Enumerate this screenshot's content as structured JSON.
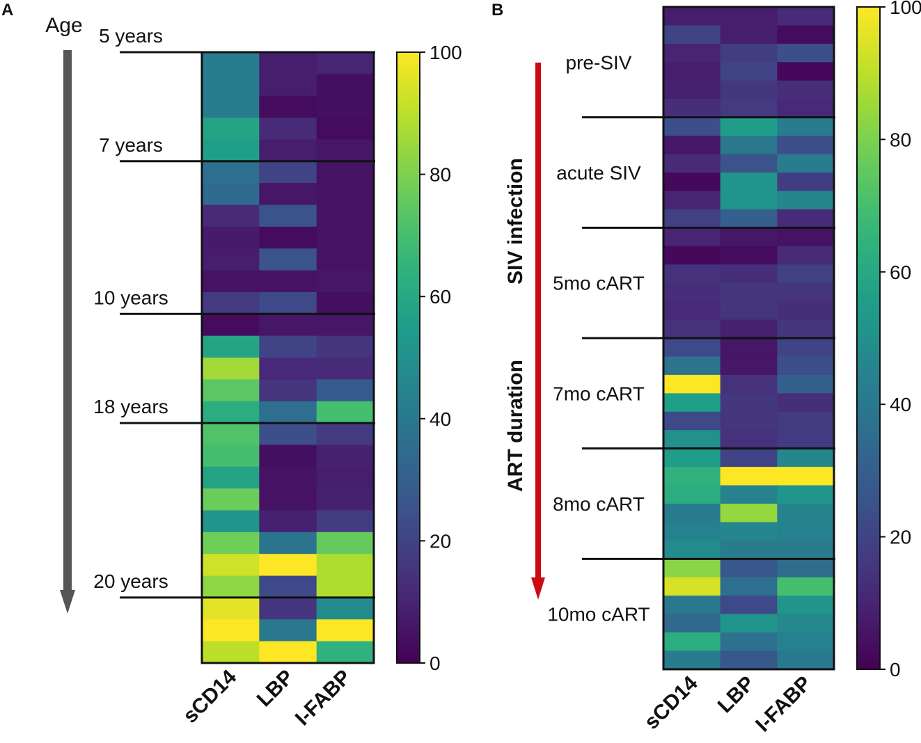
{
  "chart_data": [
    {
      "panel_label": "A",
      "type": "heatmap",
      "axis_title": "Age",
      "columns": [
        "sCD14",
        "LBP",
        "I-FABP"
      ],
      "groups": [
        {
          "label": "5 years",
          "rows": 5
        },
        {
          "label": "7 years",
          "rows": 7
        },
        {
          "label": "10 years",
          "rows": 5
        },
        {
          "label": "18 years",
          "rows": 8
        },
        {
          "label": "20 years",
          "rows": 3
        }
      ],
      "values": [
        [
          42,
          8,
          10
        ],
        [
          42,
          8,
          4
        ],
        [
          42,
          3,
          4
        ],
        [
          58,
          12,
          3
        ],
        [
          56,
          8,
          6
        ],
        [
          36,
          20,
          5
        ],
        [
          34,
          6,
          5
        ],
        [
          12,
          26,
          5
        ],
        [
          7,
          3,
          5
        ],
        [
          8,
          26,
          5
        ],
        [
          5,
          5,
          6
        ],
        [
          17,
          22,
          4
        ],
        [
          3,
          6,
          6
        ],
        [
          58,
          20,
          15
        ],
        [
          86,
          11,
          12
        ],
        [
          74,
          15,
          28
        ],
        [
          62,
          36,
          70
        ],
        [
          72,
          24,
          17
        ],
        [
          70,
          4,
          9
        ],
        [
          58,
          5,
          8
        ],
        [
          77,
          5,
          9
        ],
        [
          52,
          9,
          18
        ],
        [
          78,
          38,
          76
        ],
        [
          93,
          100,
          88
        ],
        [
          83,
          22,
          88
        ],
        [
          96,
          15,
          48
        ],
        [
          100,
          40,
          100
        ],
        [
          90,
          100,
          64
        ]
      ],
      "colorbar": {
        "min": 0,
        "max": 100,
        "ticks": [
          "0",
          "20",
          "40",
          "60",
          "80",
          "100"
        ]
      }
    },
    {
      "panel_label": "B",
      "type": "heatmap",
      "vertical_labels": [
        "SIV infection",
        "ART duration"
      ],
      "columns": [
        "sCD14",
        "LBP",
        "I-FABP"
      ],
      "groups": [
        {
          "label": "pre-SIV",
          "rows": 6
        },
        {
          "label": "acute SIV",
          "rows": 6
        },
        {
          "label": "5mo cART",
          "rows": 6
        },
        {
          "label": "7mo cART",
          "rows": 6
        },
        {
          "label": "8mo cART",
          "rows": 6
        },
        {
          "label": "10mo cART",
          "rows": 6
        }
      ],
      "values": [
        [
          8,
          8,
          12
        ],
        [
          20,
          8,
          3
        ],
        [
          10,
          18,
          24
        ],
        [
          8,
          20,
          2
        ],
        [
          9,
          16,
          13
        ],
        [
          13,
          17,
          11
        ],
        [
          24,
          55,
          42
        ],
        [
          6,
          40,
          24
        ],
        [
          12,
          25,
          42
        ],
        [
          2,
          52,
          18
        ],
        [
          10,
          52,
          46
        ],
        [
          19,
          30,
          12
        ],
        [
          10,
          6,
          5
        ],
        [
          2,
          3,
          12
        ],
        [
          14,
          13,
          19
        ],
        [
          13,
          16,
          15
        ],
        [
          11,
          15,
          13
        ],
        [
          14,
          9,
          16
        ],
        [
          22,
          6,
          20
        ],
        [
          38,
          6,
          24
        ],
        [
          100,
          14,
          30
        ],
        [
          56,
          16,
          13
        ],
        [
          22,
          15,
          17
        ],
        [
          50,
          14,
          17
        ],
        [
          55,
          20,
          46
        ],
        [
          64,
          100,
          100
        ],
        [
          62,
          45,
          52
        ],
        [
          42,
          84,
          45
        ],
        [
          44,
          46,
          44
        ],
        [
          48,
          42,
          42
        ],
        [
          82,
          27,
          35
        ],
        [
          94,
          36,
          70
        ],
        [
          40,
          22,
          52
        ],
        [
          34,
          52,
          47
        ],
        [
          62,
          37,
          44
        ],
        [
          42,
          27,
          40
        ]
      ],
      "colorbar": {
        "min": 0,
        "max": 100,
        "ticks": [
          "0",
          "20",
          "40",
          "60",
          "80",
          "100"
        ]
      }
    }
  ],
  "colors": {
    "arrow_a": "#555555",
    "arrow_b": "#cc0a16",
    "frame": "#111111"
  }
}
